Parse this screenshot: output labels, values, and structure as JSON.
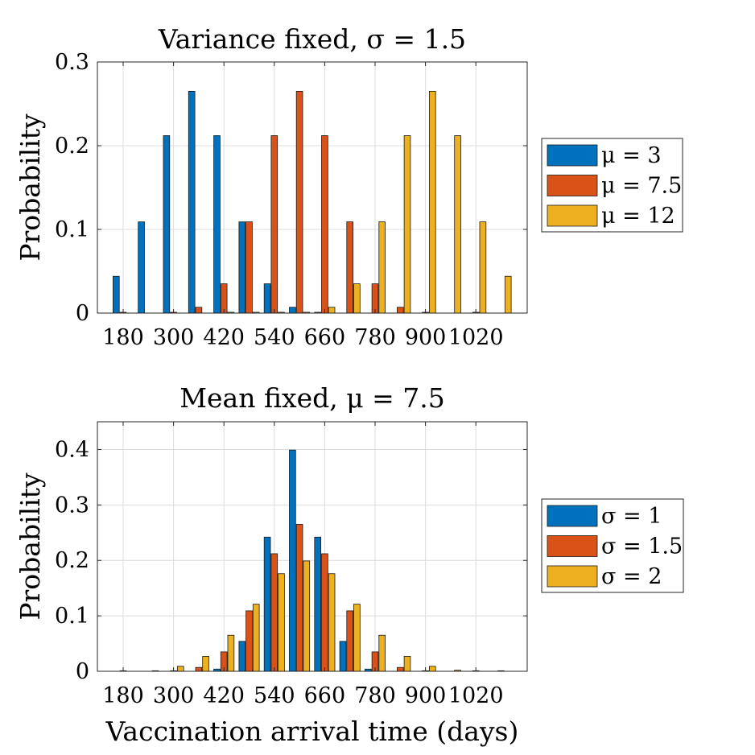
{
  "chart_data": [
    {
      "type": "bar",
      "title": "Variance fixed, σ = 1.5",
      "xlabel": "",
      "ylabel": "Probability",
      "ylim": [
        0,
        0.3
      ],
      "yticks": [
        0,
        0.1,
        0.2,
        0.3
      ],
      "ytick_labels": [
        "0",
        "0.1",
        "0.2",
        "0.3"
      ],
      "xtick_labels": [
        "180",
        "300",
        "420",
        "540",
        "660",
        "780",
        "900",
        "1020"
      ],
      "x": [
        180,
        240,
        300,
        360,
        420,
        480,
        540,
        600,
        660,
        720,
        780,
        840,
        900,
        960,
        1020,
        1080
      ],
      "grid": true,
      "legend_position": "right",
      "series": [
        {
          "name": "μ = 3",
          "color": "#0072BD",
          "values": [
            0.044,
            0.109,
            0.212,
            0.265,
            0.212,
            0.109,
            0.035,
            0.007,
            0.001,
            0,
            0,
            0,
            0,
            0,
            0,
            0
          ]
        },
        {
          "name": "μ = 7.5",
          "color": "#D95319",
          "values": [
            0.001,
            0,
            0.001,
            0.007,
            0.035,
            0.109,
            0.212,
            0.265,
            0.212,
            0.109,
            0.035,
            0.007,
            0.001,
            0,
            0.001,
            0
          ]
        },
        {
          "name": "μ = 12",
          "color": "#EDB120",
          "values": [
            0,
            0,
            0,
            0,
            0.001,
            0.001,
            0.001,
            0.001,
            0.007,
            0.035,
            0.109,
            0.212,
            0.265,
            0.212,
            0.109,
            0.044
          ]
        }
      ]
    },
    {
      "type": "bar",
      "title": "Mean fixed, μ = 7.5",
      "xlabel": "Vaccination arrival time (days)",
      "ylabel": "Probability",
      "ylim": [
        0,
        0.45
      ],
      "yticks": [
        0,
        0.1,
        0.2,
        0.3,
        0.4
      ],
      "ytick_labels": [
        "0",
        "0.1",
        "0.2",
        "0.3",
        "0.4"
      ],
      "xtick_labels": [
        "180",
        "300",
        "420",
        "540",
        "660",
        "780",
        "900",
        "1020"
      ],
      "x": [
        180,
        240,
        300,
        360,
        420,
        480,
        540,
        600,
        660,
        720,
        780,
        840,
        900,
        960,
        1020,
        1080
      ],
      "grid": true,
      "legend_position": "right",
      "series": [
        {
          "name": "σ = 1",
          "color": "#0072BD",
          "values": [
            0,
            0,
            0,
            0,
            0.004,
            0.054,
            0.242,
            0.399,
            0.242,
            0.054,
            0.004,
            0,
            0,
            0,
            0,
            0
          ]
        },
        {
          "name": "σ = 1.5",
          "color": "#D95319",
          "values": [
            0.001,
            0,
            0.001,
            0.007,
            0.035,
            0.109,
            0.212,
            0.265,
            0.212,
            0.109,
            0.035,
            0.007,
            0.001,
            0,
            0.001,
            0.001
          ]
        },
        {
          "name": "σ = 2",
          "color": "#EDB120",
          "values": [
            0,
            0.001,
            0.009,
            0.027,
            0.065,
            0.121,
            0.176,
            0.199,
            0.176,
            0.121,
            0.065,
            0.027,
            0.009,
            0.002,
            0,
            0
          ]
        }
      ]
    }
  ]
}
